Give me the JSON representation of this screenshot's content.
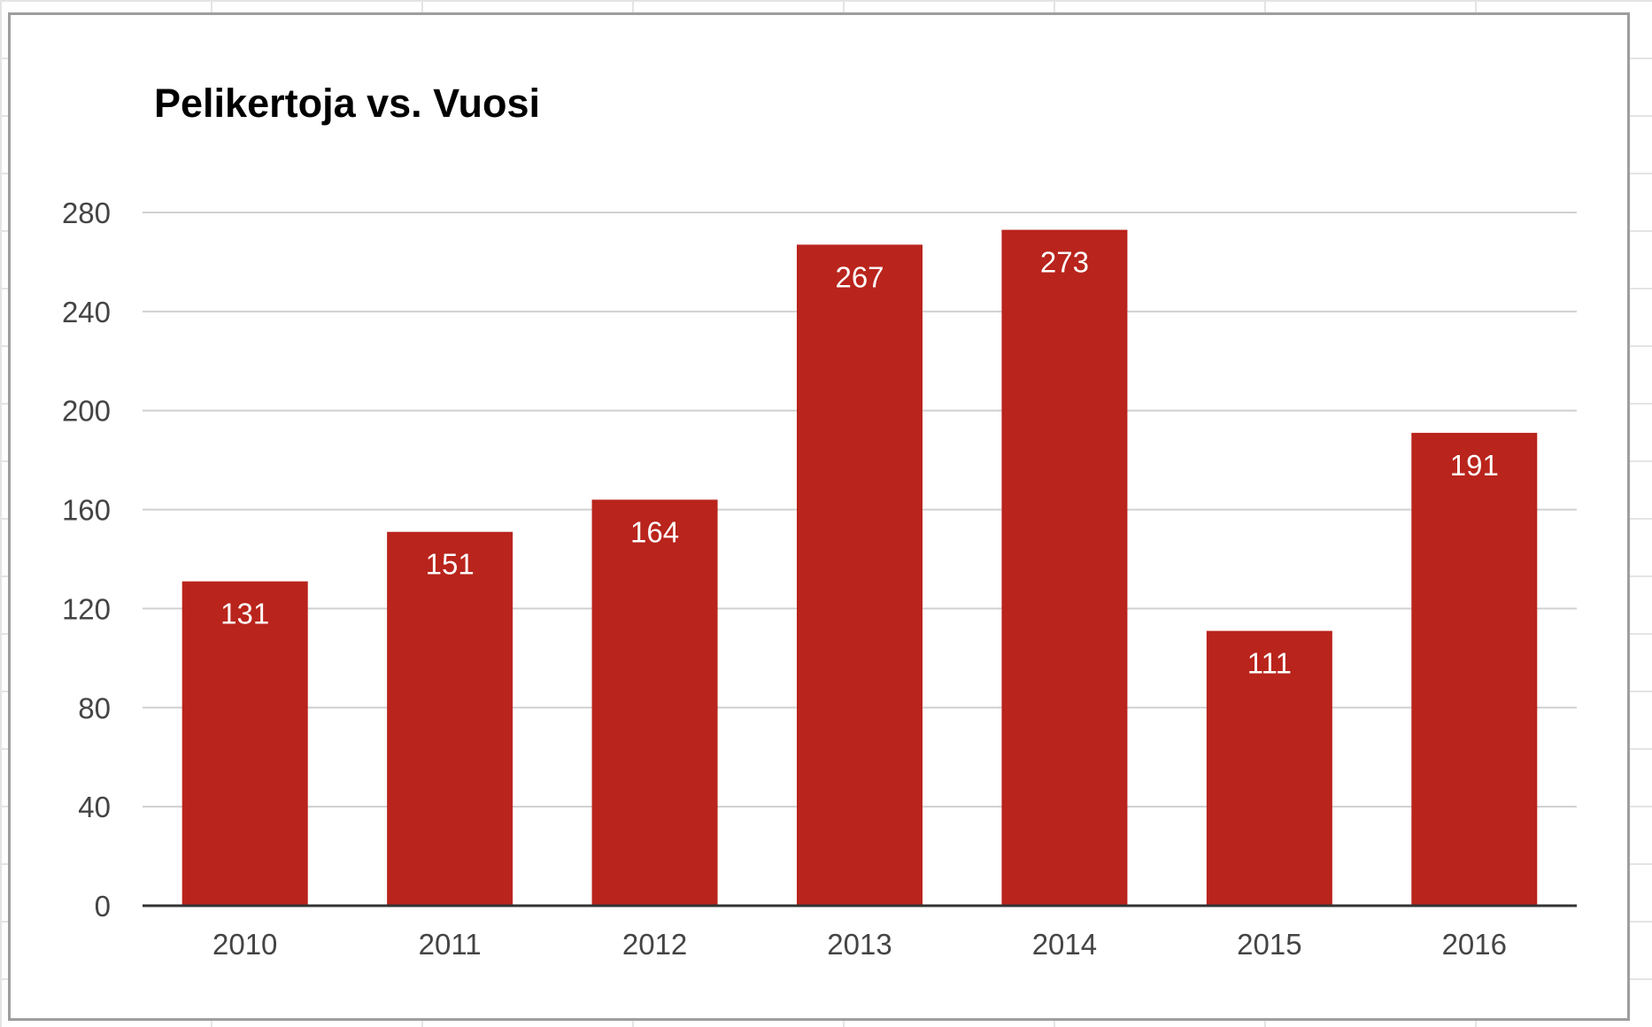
{
  "chart_data": {
    "type": "bar",
    "title": "Pelikertoja vs. Vuosi",
    "categories": [
      "2010",
      "2011",
      "2012",
      "2013",
      "2014",
      "2015",
      "2016"
    ],
    "values": [
      131,
      151,
      164,
      267,
      273,
      111,
      191
    ],
    "ylim": [
      0,
      280
    ],
    "yticks": [
      0,
      40,
      80,
      120,
      160,
      200,
      240,
      280
    ],
    "grid": true,
    "data_labels": true,
    "bar_color": "#b9241c",
    "gridline_color": "#d0d0d0",
    "axis_color": "#333333"
  }
}
